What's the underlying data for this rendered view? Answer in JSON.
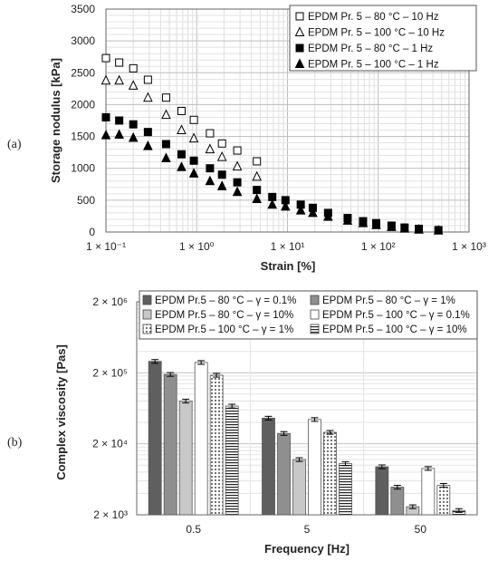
{
  "panels": {
    "a": "(a)",
    "b": "(b)"
  },
  "chart_data": [
    {
      "type": "scatter",
      "xlabel": "Strain [%]",
      "ylabel": "Storage nodulus [kPa]",
      "x_scale": "log",
      "xlim": [
        0.1,
        1000
      ],
      "ylim": [
        0,
        3500
      ],
      "x_ticks": [
        "1 × 10⁻¹",
        "1 × 10⁰",
        "1 × 10¹",
        "1 × 10²",
        "1 × 10³"
      ],
      "y_ticks": [
        "0",
        "500",
        "1000",
        "1500",
        "2000",
        "2500",
        "3000",
        "3500"
      ],
      "grid": true,
      "legend_position": "top-right",
      "series": [
        {
          "name": "EPDM Pr. 5 – 80 °C – 10 Hz",
          "marker": "open-square",
          "x": [
            0.1,
            0.14,
            0.2,
            0.29,
            0.46,
            0.68,
            0.93,
            1.4,
            1.9,
            2.8,
            4.6
          ],
          "y": [
            2730,
            2660,
            2570,
            2390,
            2110,
            1900,
            1760,
            1550,
            1390,
            1280,
            1110
          ]
        },
        {
          "name": "EPDM Pr. 5 – 100 °C – 10 Hz",
          "marker": "open-triangle",
          "x": [
            0.1,
            0.14,
            0.2,
            0.29,
            0.46,
            0.68,
            0.93,
            1.4,
            1.9,
            2.8,
            4.6
          ],
          "y": [
            2380,
            2380,
            2300,
            2110,
            1840,
            1600,
            1470,
            1300,
            1180,
            1030,
            870
          ]
        },
        {
          "name": "EPDM Pr. 5 – 80 °C – 1 Hz",
          "marker": "filled-square",
          "x": [
            0.1,
            0.14,
            0.2,
            0.29,
            0.46,
            0.68,
            0.93,
            1.4,
            1.9,
            2.8,
            4.6,
            6.8,
            9.5,
            14,
            19,
            28,
            46,
            68,
            95,
            140,
            195,
            280,
            460
          ],
          "y": [
            1800,
            1750,
            1690,
            1570,
            1380,
            1220,
            1120,
            1000,
            900,
            780,
            660,
            550,
            500,
            430,
            380,
            300,
            220,
            170,
            140,
            100,
            70,
            50,
            30
          ]
        },
        {
          "name": "EPDM Pr. 5 – 100 °C – 1 Hz",
          "marker": "filled-triangle",
          "x": [
            0.1,
            0.14,
            0.2,
            0.29,
            0.46,
            0.68,
            0.93,
            1.4,
            1.9,
            2.8,
            4.6,
            6.8,
            9.5,
            14,
            19,
            28,
            46,
            68,
            95,
            140,
            195,
            280,
            460
          ],
          "y": [
            1520,
            1530,
            1480,
            1350,
            1160,
            1020,
            920,
            800,
            720,
            630,
            520,
            430,
            400,
            340,
            300,
            240,
            180,
            140,
            110,
            80,
            55,
            40,
            25
          ]
        }
      ]
    },
    {
      "type": "bar",
      "xlabel": "Frequency [Hz]",
      "ylabel": "Complex viscosity  [Pas]",
      "y_scale": "log",
      "ylim": [
        2000,
        2000000
      ],
      "y_ticks": [
        "2 × 10³",
        "2 × 10⁴",
        "2 × 10⁵",
        "2 × 10⁶"
      ],
      "categories": [
        "0.5",
        "5",
        "50"
      ],
      "grid": true,
      "legend_position": "top",
      "series": [
        {
          "name": "EPDM  Pr.5 – 80 °C – γ = 0.1%",
          "pattern": "dark-gray",
          "values": [
            290000,
            46000,
            9500
          ]
        },
        {
          "name": "EPDM  Pr.5 – 80 °C – γ = 1%",
          "pattern": "medium-gray",
          "values": [
            190000,
            28000,
            4900
          ]
        },
        {
          "name": "EPDM  Pr.5 – 80 °C – γ = 10%",
          "pattern": "light-gray",
          "values": [
            80000,
            12000,
            2600
          ]
        },
        {
          "name": "EPDM  Pr.5 – 100 °C – γ = 0.1%",
          "pattern": "white",
          "values": [
            280000,
            44000,
            9000
          ]
        },
        {
          "name": "EPDM  Pr.5 – 100 °C – γ = 1%",
          "pattern": "dotted",
          "values": [
            185000,
            29000,
            5200
          ]
        },
        {
          "name": "EPDM  Pr.5 – 100 °C – γ = 10%",
          "pattern": "horizontal-stripes",
          "values": [
            68000,
            10500,
            2300
          ]
        }
      ]
    }
  ]
}
